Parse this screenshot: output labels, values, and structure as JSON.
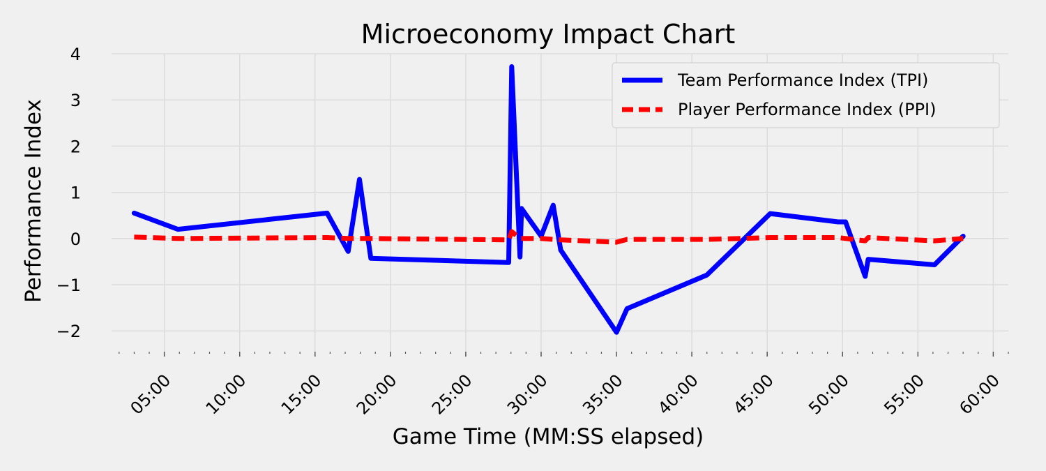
{
  "chart_data": {
    "type": "line",
    "title": "Microeconomy Impact Chart",
    "xlabel": "Game Time (MM:SS elapsed)",
    "ylabel": "Performance Index",
    "xlim": [
      1.5,
      61.0
    ],
    "ylim": [
      -2.45,
      4.0
    ],
    "x_unit": "minutes elapsed",
    "x_ticks": [
      {
        "value": 5,
        "label": "05:00"
      },
      {
        "value": 10,
        "label": "10:00"
      },
      {
        "value": 15,
        "label": "15:00"
      },
      {
        "value": 20,
        "label": "20:00"
      },
      {
        "value": 25,
        "label": "25:00"
      },
      {
        "value": 30,
        "label": "30:00"
      },
      {
        "value": 35,
        "label": "35:00"
      },
      {
        "value": 40,
        "label": "40:00"
      },
      {
        "value": 45,
        "label": "45:00"
      },
      {
        "value": 50,
        "label": "50:00"
      },
      {
        "value": 55,
        "label": "55:00"
      },
      {
        "value": 60,
        "label": "60:00"
      }
    ],
    "x_minor_tick_step": 1,
    "y_ticks": [
      {
        "value": -2,
        "label": "−2"
      },
      {
        "value": -1,
        "label": "−1"
      },
      {
        "value": 0,
        "label": "0"
      },
      {
        "value": 1,
        "label": "1"
      },
      {
        "value": 2,
        "label": "2"
      },
      {
        "value": 3,
        "label": "3"
      },
      {
        "value": 4,
        "label": "4"
      }
    ],
    "grid": true,
    "legend_position": "top-right",
    "series": [
      {
        "name": "Team Performance Index (TPI)",
        "color": "#0000ff",
        "style": "solid",
        "x": [
          3.0,
          5.9,
          15.8,
          17.2,
          17.95,
          18.7,
          27.85,
          28.05,
          28.6,
          28.7,
          30.0,
          30.8,
          31.3,
          35.0,
          35.7,
          41.0,
          45.2,
          49.7,
          50.2,
          51.5,
          51.7,
          56.1,
          58.0
        ],
        "y": [
          0.55,
          0.2,
          0.55,
          -0.28,
          1.28,
          -0.43,
          -0.52,
          3.72,
          -0.4,
          0.65,
          0.05,
          0.72,
          -0.25,
          -2.03,
          -1.52,
          -0.79,
          0.54,
          0.36,
          0.36,
          -0.82,
          -0.45,
          -0.57,
          0.05
        ]
      },
      {
        "name": "Player Performance Index (PPI)",
        "color": "#ff0000",
        "style": "dashed",
        "x": [
          3.0,
          5.9,
          15.8,
          17.2,
          18.7,
          27.85,
          28.05,
          28.6,
          30.0,
          31.3,
          35.0,
          35.7,
          41.0,
          45.2,
          49.7,
          51.5,
          51.7,
          56.1,
          58.0
        ],
        "y": [
          0.03,
          0.0,
          0.02,
          0.0,
          0.0,
          -0.03,
          0.15,
          0.0,
          0.0,
          -0.03,
          -0.08,
          -0.02,
          -0.02,
          0.02,
          0.02,
          -0.05,
          0.02,
          -0.05,
          0.0
        ]
      }
    ]
  }
}
